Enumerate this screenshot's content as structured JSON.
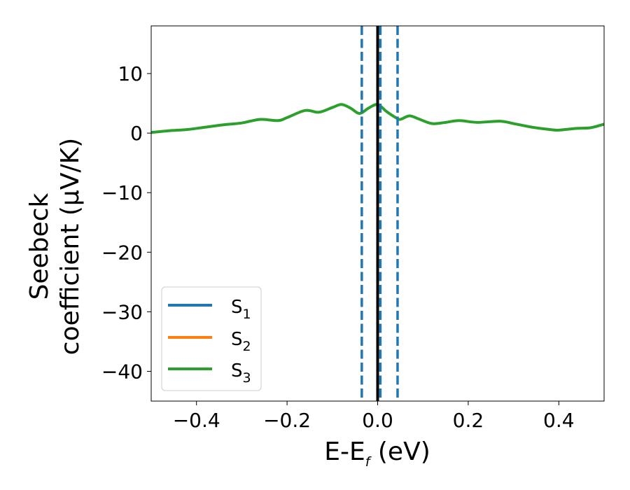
{
  "chart_data": {
    "type": "line",
    "xlabel": {
      "main": "E-E",
      "sub": "f",
      "tail": " (eV)"
    },
    "ylabel": {
      "line1": "Seebeck",
      "line2": "coefficient  (μV/K)"
    },
    "xlim": [
      -0.5,
      0.5
    ],
    "ylim": [
      -45,
      18
    ],
    "x_ticks": [
      -0.4,
      -0.2,
      0.0,
      0.2,
      0.4
    ],
    "x_tick_labels": [
      "−0.4",
      "−0.2",
      "0.0",
      "0.2",
      "0.4"
    ],
    "y_ticks": [
      10,
      0,
      -10,
      -20,
      -30,
      -40
    ],
    "y_tick_labels": [
      "10",
      "0",
      "−10",
      "−20",
      "−30",
      "−40"
    ],
    "grid": false,
    "legend_position": "lower-left",
    "series": [
      {
        "name": "S",
        "sub": "1",
        "color": "#1f77b4",
        "x": [],
        "y": []
      },
      {
        "name": "S",
        "sub": "2",
        "color": "#ff7f0e",
        "x": [],
        "y": []
      },
      {
        "name": "S",
        "sub": "3",
        "color": "#2ca02c",
        "x": [
          -0.5,
          -0.46,
          -0.42,
          -0.38,
          -0.34,
          -0.3,
          -0.26,
          -0.22,
          -0.2,
          -0.16,
          -0.13,
          -0.1,
          -0.08,
          -0.06,
          -0.04,
          -0.02,
          0.0,
          0.02,
          0.04,
          0.05,
          0.07,
          0.09,
          0.12,
          0.15,
          0.18,
          0.22,
          0.27,
          0.3,
          0.34,
          0.38,
          0.4,
          0.44,
          0.47,
          0.5
        ],
        "y": [
          0.1,
          0.4,
          0.6,
          1.0,
          1.4,
          1.7,
          2.3,
          2.1,
          2.6,
          3.8,
          3.5,
          4.3,
          4.8,
          4.2,
          3.3,
          4.2,
          4.8,
          3.6,
          2.6,
          2.3,
          2.9,
          2.4,
          1.6,
          1.8,
          2.1,
          1.8,
          2.0,
          1.6,
          1.0,
          0.6,
          0.5,
          0.8,
          0.9,
          1.5
        ]
      }
    ],
    "vlines": [
      {
        "x": -0.035,
        "color": "#1f77b4",
        "style": "dashed"
      },
      {
        "x": 0.0,
        "color": "#000000",
        "style": "solid"
      },
      {
        "x": 0.006,
        "color": "#1f77b4",
        "style": "dashed"
      },
      {
        "x": 0.044,
        "color": "#1f77b4",
        "style": "dashed"
      }
    ]
  }
}
